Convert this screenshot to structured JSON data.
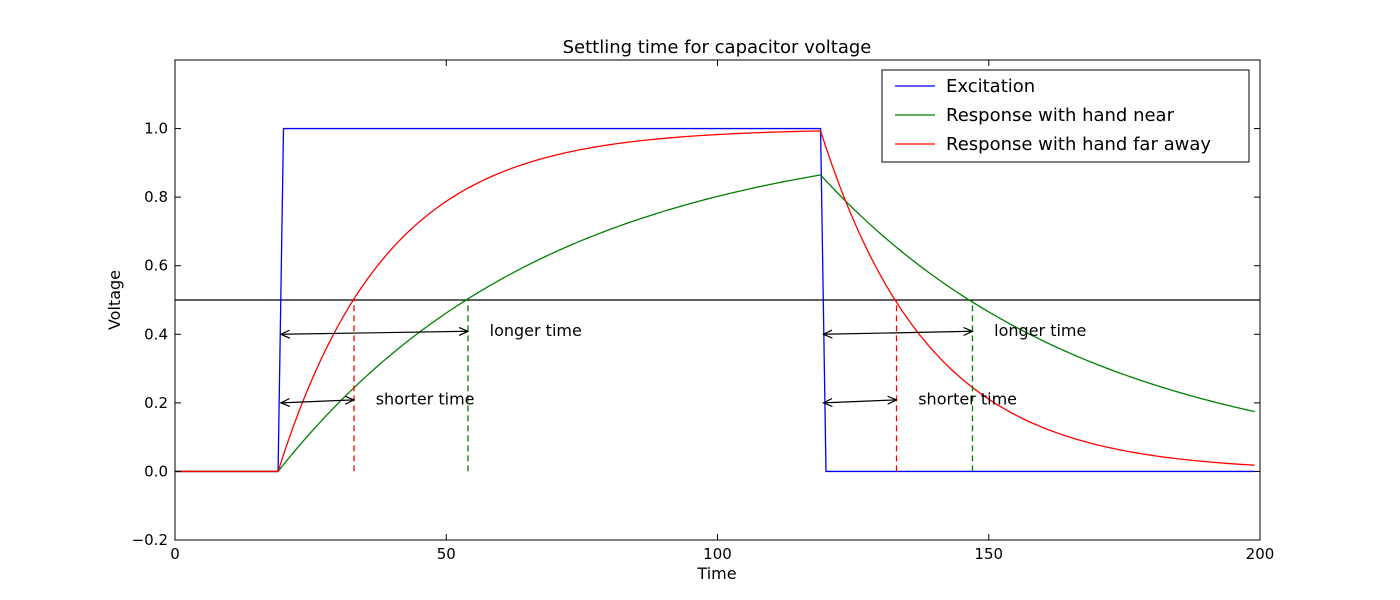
{
  "chart_data": {
    "type": "line",
    "title": "Settling time for capacitor voltage",
    "xlabel": "Time",
    "ylabel": "Voltage",
    "xlim": [
      0,
      200
    ],
    "ylim": [
      -0.2,
      1.2
    ],
    "xticks": [
      0,
      50,
      100,
      150,
      200
    ],
    "yticks": [
      -0.2,
      0.0,
      0.2,
      0.4,
      0.6,
      0.8,
      1.0
    ],
    "grid": false,
    "legend_position": "top-right",
    "threshold": {
      "y": 0.5,
      "color": "#000000"
    },
    "series": [
      {
        "name": "Excitation",
        "color": "#0000ff",
        "points": [
          [
            0,
            0
          ],
          [
            19,
            0
          ],
          [
            20,
            1
          ],
          [
            119,
            1
          ],
          [
            120,
            0
          ],
          [
            199,
            0
          ]
        ]
      },
      {
        "name": "Response with hand near",
        "color": "#008000",
        "model": {
          "tau": 50,
          "rise_start": 19,
          "fall_start": 119,
          "end": 199
        }
      },
      {
        "name": "Response with hand far away",
        "color": "#ff0000",
        "model": {
          "tau": 20,
          "rise_start": 19,
          "fall_start": 119,
          "end": 199
        }
      }
    ],
    "markers": [
      {
        "x": 33,
        "y0": 0,
        "y1": 0.5,
        "color": "#ff0000"
      },
      {
        "x": 54,
        "y0": 0,
        "y1": 0.5,
        "color": "#008000"
      },
      {
        "x": 133,
        "y0": 0,
        "y1": 0.5,
        "color": "#ff0000"
      },
      {
        "x": 147,
        "y0": 0,
        "y1": 0.5,
        "color": "#008000"
      }
    ],
    "annotations": [
      {
        "text": "longer time",
        "x1": 19.5,
        "x2": 54,
        "y": 0.4,
        "text_x": 58,
        "text_y": 0.41
      },
      {
        "text": "shorter time",
        "x1": 19.5,
        "x2": 33,
        "y": 0.2,
        "text_x": 37,
        "text_y": 0.21
      },
      {
        "text": "longer time",
        "x1": 119.5,
        "x2": 147,
        "y": 0.4,
        "text_x": 151,
        "text_y": 0.41
      },
      {
        "text": "shorter time",
        "x1": 119.5,
        "x2": 133,
        "y": 0.2,
        "text_x": 137,
        "text_y": 0.21
      }
    ]
  }
}
